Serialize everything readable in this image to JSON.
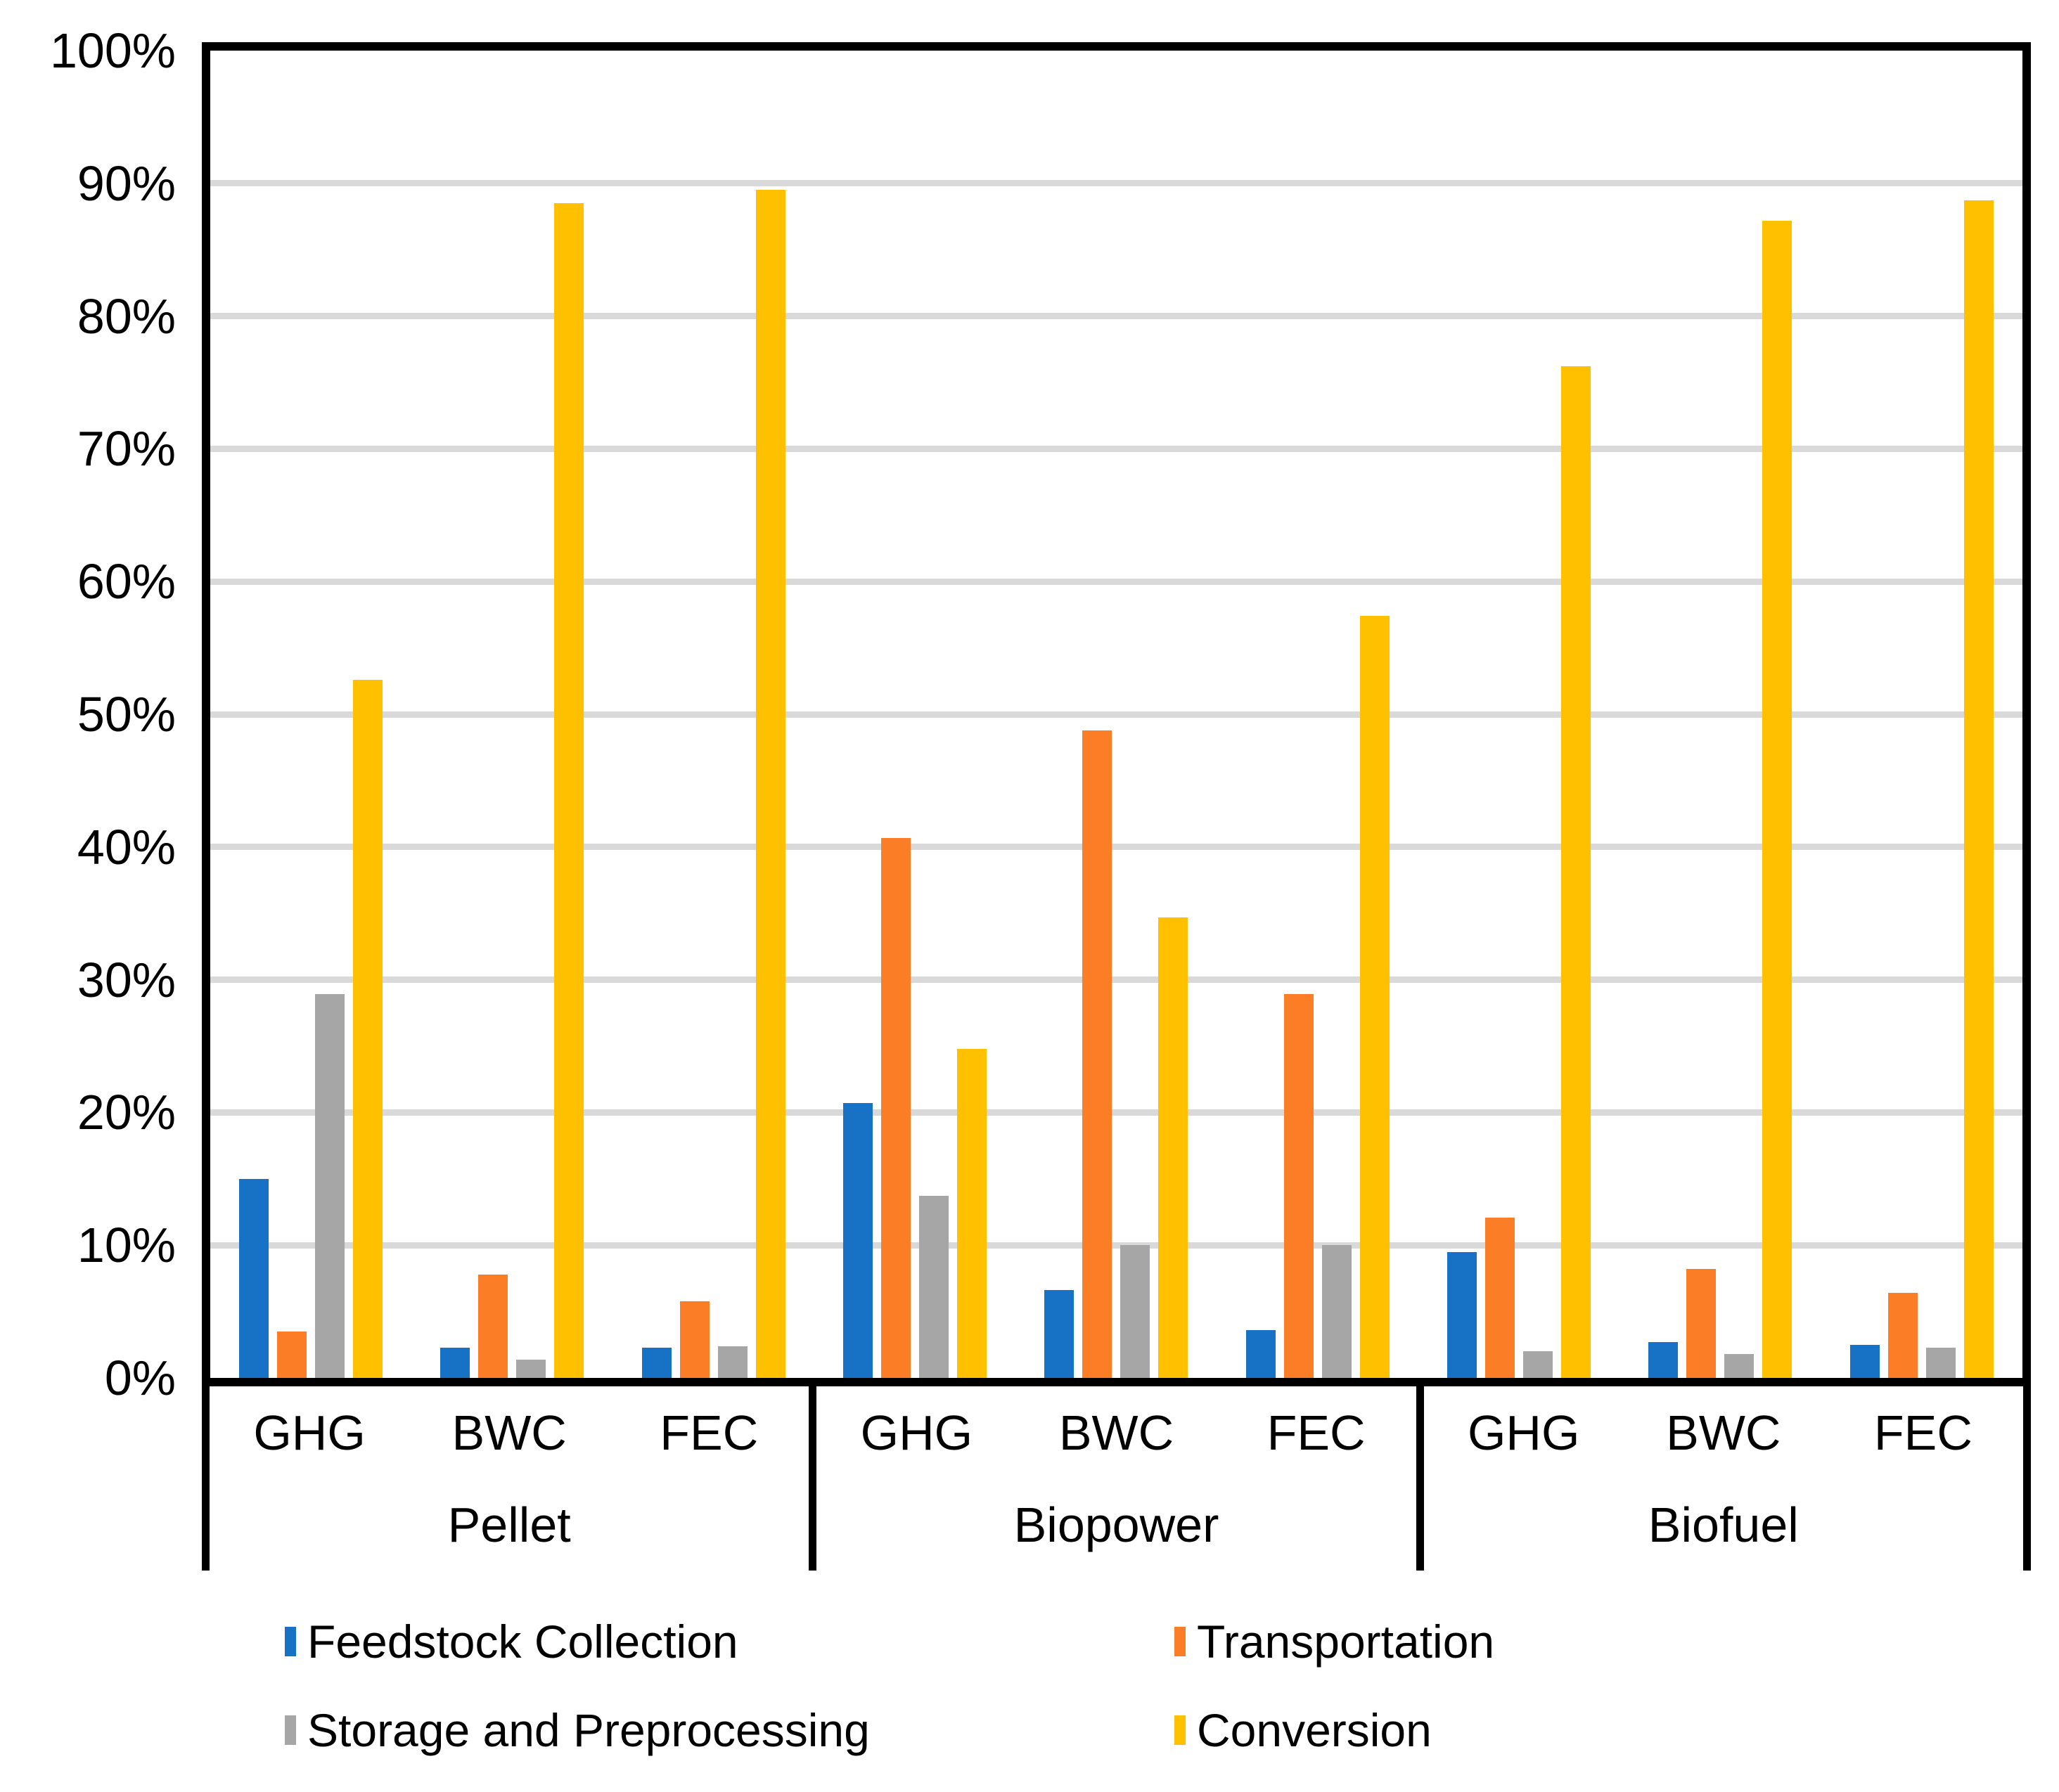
{
  "chart_data": {
    "type": "bar",
    "title": "",
    "xlabel": "",
    "ylabel": "",
    "ylim": [
      0,
      100
    ],
    "grid": true,
    "legend_position": "bottom",
    "background_color": "#FFFFFF",
    "axis_color": "#000000",
    "gridline_color": "#D9D9D9",
    "y_ticks": [
      "0%",
      "10%",
      "20%",
      "30%",
      "40%",
      "50%",
      "60%",
      "70%",
      "80%",
      "90%",
      "100%"
    ],
    "groups": [
      "Pellet",
      "Biopower",
      "Biofuel"
    ],
    "categories": [
      "GHG",
      "BWC",
      "FEC"
    ],
    "series": [
      {
        "name": "Feedstock Collection",
        "color": "#1772C6",
        "values": [
          15.0,
          2.3,
          2.3,
          20.7,
          6.6,
          3.6,
          9.5,
          2.7,
          2.5
        ]
      },
      {
        "name": "Transportation",
        "color": "#FB7D26",
        "values": [
          3.5,
          7.8,
          5.8,
          40.7,
          48.8,
          28.9,
          12.1,
          8.2,
          6.4
        ]
      },
      {
        "name": "Storage and Preprocessing",
        "color": "#A6A6A6",
        "values": [
          28.9,
          1.4,
          2.4,
          13.7,
          10.0,
          10.0,
          2.0,
          1.8,
          2.3
        ]
      },
      {
        "name": "Conversion",
        "color": "#FFC000",
        "values": [
          52.6,
          88.5,
          89.5,
          24.8,
          34.7,
          57.4,
          76.2,
          87.2,
          88.7
        ]
      }
    ],
    "value_order_note": "values are per group+category in order: Pellet GHG, Pellet BWC, Pellet FEC, Biopower GHG, Biopower BWC, Biopower FEC, Biofuel GHG, Biofuel BWC, Biofuel FEC"
  }
}
